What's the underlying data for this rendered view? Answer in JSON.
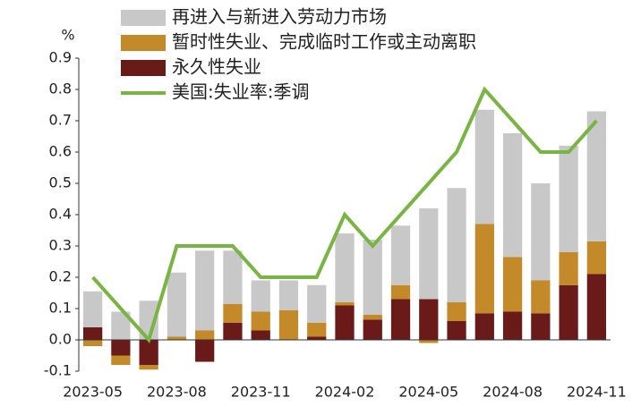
{
  "chart_data": {
    "type": "bar",
    "y_unit": "%",
    "categories": [
      "2023-05",
      null,
      null,
      "2023-08",
      null,
      null,
      "2023-11",
      null,
      null,
      "2024-02",
      null,
      null,
      "2024-05",
      null,
      null,
      "2024-08",
      null,
      null,
      "2024-11"
    ],
    "series": [
      {
        "name": "再进入与新进入劳动力市场",
        "type": "bar",
        "color": "#c8c8c8",
        "values": [
          0.115,
          0.09,
          0.125,
          0.205,
          0.255,
          0.17,
          0.1,
          0.095,
          0.12,
          0.22,
          0.24,
          0.19,
          0.29,
          0.365,
          0.365,
          0.395,
          0.31,
          0.34,
          0.415
        ]
      },
      {
        "name": "暂时性失业、完成临时工作或主动离职",
        "type": "bar",
        "color": "#c48a2a",
        "values": [
          -0.02,
          -0.03,
          -0.015,
          0.01,
          0.03,
          0.06,
          0.06,
          0.095,
          0.045,
          0.01,
          0.015,
          0.045,
          -0.01,
          0.06,
          0.285,
          0.175,
          0.105,
          0.105,
          0.105
        ]
      },
      {
        "name": "永久性失业",
        "type": "bar",
        "color": "#6b1a1a",
        "values": [
          0.04,
          -0.05,
          -0.08,
          0,
          -0.07,
          0.055,
          0.03,
          0,
          0.01,
          0.11,
          0.065,
          0.13,
          0.13,
          0.06,
          0.085,
          0.09,
          0.085,
          0.175,
          0.21
        ]
      },
      {
        "name": "美国:失业率:季调",
        "type": "line",
        "color": "#78b543",
        "values": [
          0.2,
          0.1,
          0.0,
          0.3,
          0.3,
          0.3,
          0.2,
          0.2,
          0.2,
          0.4,
          0.3,
          0.4,
          0.5,
          0.6,
          0.8,
          0.7,
          0.6,
          0.6,
          0.7
        ]
      }
    ],
    "ylim": [
      -0.1,
      0.9
    ],
    "yticks": [
      -0.1,
      {
        "value": 0,
        "label": "0.0"
      },
      0.1,
      0.2,
      0.3,
      0.4,
      0.5,
      0.6,
      0.7,
      0.8,
      0.9
    ]
  }
}
